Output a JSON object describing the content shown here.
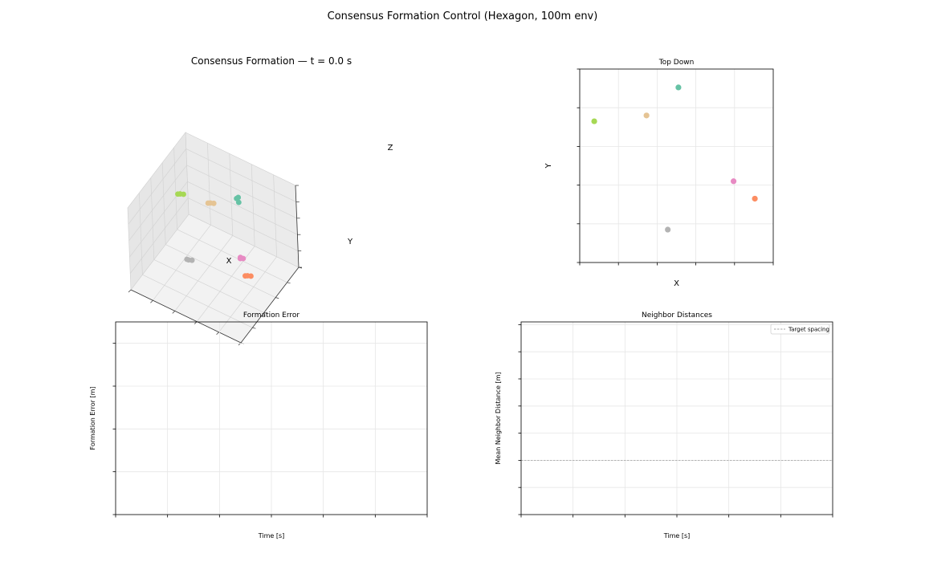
{
  "figure": {
    "suptitle": "Consensus Formation Control (Hexagon, 100m env)"
  },
  "colors": {
    "teal": "#66c2a5",
    "orange": "#fc8d62",
    "pink": "#e78ac3",
    "lime": "#a6d854",
    "tan": "#e5c494",
    "gray": "#b3b3b3",
    "grid": "#e6e6e6",
    "target": "#aaaaaa"
  },
  "chart_data": [
    {
      "id": "view3d",
      "type": "scatter",
      "title": "Consensus Formation — t = 0.0 s",
      "xlabel": "X",
      "ylabel": "Y",
      "zlabel": "Z",
      "xlim": [
        0,
        100
      ],
      "ylim": [
        0,
        100
      ],
      "zlim": [
        0,
        100
      ],
      "xticks": [
        "0",
        "20",
        "40",
        "60",
        "80",
        "100"
      ],
      "yticks": [
        "0",
        "20",
        "40",
        "60",
        "80",
        "100"
      ],
      "zticks": [
        "0",
        "20",
        "40",
        "60",
        "80",
        "100"
      ],
      "grid": true,
      "series": [
        {
          "color": "teal",
          "points": [
            [
              50,
              91,
              60
            ],
            [
              53,
              89,
              59
            ],
            [
              51,
              92,
              61
            ]
          ]
        },
        {
          "color": "orange",
          "points": [
            [
              90,
              33,
              45
            ],
            [
              92,
              35,
              44
            ],
            [
              89,
              31,
              46
            ]
          ]
        },
        {
          "color": "pink",
          "points": [
            [
              79,
              42,
              52
            ],
            [
              81,
              43,
              51
            ],
            [
              80,
              40,
              53
            ]
          ]
        },
        {
          "color": "lime",
          "points": [
            [
              8,
              73,
              55
            ],
            [
              10,
              75,
              54
            ],
            [
              7,
              71,
              56
            ]
          ]
        },
        {
          "color": "tan",
          "points": [
            [
              34,
              76,
              58
            ],
            [
              36,
              78,
              57
            ],
            [
              33,
              74,
              59
            ]
          ]
        },
        {
          "color": "gray",
          "points": [
            [
              45,
              17,
              50
            ],
            [
              47,
              19,
              49
            ],
            [
              44,
              16,
              51
            ]
          ]
        }
      ]
    },
    {
      "id": "topdown",
      "type": "scatter",
      "title": "Top Down",
      "xlabel": "X",
      "ylabel": "Y",
      "xlim": [
        0,
        100
      ],
      "ylim": [
        0,
        100
      ],
      "xticks": [
        0,
        20,
        40,
        60,
        80,
        100
      ],
      "yticks": [
        0,
        20,
        40,
        60,
        80,
        100
      ],
      "grid": true,
      "points": [
        {
          "x": 51,
          "y": 90.5,
          "color": "teal"
        },
        {
          "x": 7.5,
          "y": 73,
          "color": "lime"
        },
        {
          "x": 34.5,
          "y": 76,
          "color": "tan"
        },
        {
          "x": 79.5,
          "y": 42,
          "color": "pink"
        },
        {
          "x": 90.5,
          "y": 33,
          "color": "orange"
        },
        {
          "x": 45.5,
          "y": 17,
          "color": "gray"
        }
      ]
    },
    {
      "id": "error",
      "type": "line",
      "title": "Formation Error",
      "xlabel": "Time [s]",
      "ylabel": "Formation Error [m]",
      "xlim": [
        0,
        60
      ],
      "ylim": [
        0,
        45
      ],
      "xticks": [
        0,
        10,
        20,
        30,
        40,
        50,
        60
      ],
      "yticks": [
        0,
        10,
        20,
        30,
        40
      ],
      "grid": true,
      "series": []
    },
    {
      "id": "neighbor",
      "type": "line",
      "title": "Neighbor Distances",
      "xlabel": "Time [s]",
      "ylabel": "Mean Neighbor Distance [m]",
      "xlim": [
        0,
        60
      ],
      "ylim": [
        0,
        71
      ],
      "xticks": [
        0,
        10,
        20,
        30,
        40,
        50,
        60
      ],
      "yticks": [
        0,
        10,
        20,
        30,
        40,
        50,
        60,
        70
      ],
      "grid": true,
      "legend": "top-right",
      "hlines": [
        {
          "y": 20,
          "label": "Target spacing",
          "style": "dashed"
        }
      ],
      "series": []
    }
  ]
}
